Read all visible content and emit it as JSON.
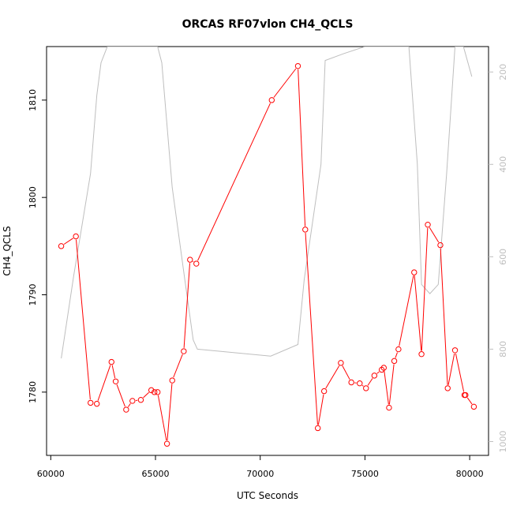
{
  "chart_data": {
    "type": "line",
    "title": "ORCAS RF07vlon CH4_QCLS",
    "xlabel": "UTC Seconds",
    "ylabel": "CH4_QCLS",
    "xlim": [
      59800,
      80900
    ],
    "ylim": [
      1773.5,
      1815.5
    ],
    "x_ticks": [
      60000,
      65000,
      70000,
      75000,
      80000
    ],
    "y_ticks": [
      1780,
      1790,
      1800,
      1810
    ],
    "y2lim": [
      1030,
      145
    ],
    "y2_ticks": [
      200,
      400,
      600,
      800,
      1000
    ],
    "grid": false,
    "series": [
      {
        "color": "#ff0000",
        "marker": "open-circle",
        "x": [
          60500,
          61200,
          61900,
          62200,
          62900,
          63100,
          63600,
          63900,
          64300,
          64800,
          64950,
          65100,
          65550,
          65800,
          66350,
          66650,
          66950,
          70550,
          71800,
          72150,
          72750,
          73050,
          73850,
          74350,
          74750,
          75050,
          75450,
          75800,
          75900,
          76150,
          76400,
          76600,
          77350,
          77700,
          78000,
          78600,
          78950,
          79300,
          79750,
          79800,
          80200
        ],
        "y": [
          1795.0,
          1796.0,
          1778.9,
          1778.8,
          1783.1,
          1781.1,
          1778.2,
          1779.1,
          1779.2,
          1780.2,
          1780.0,
          1780.0,
          1774.7,
          1781.2,
          1784.2,
          1793.6,
          1793.2,
          1810.0,
          1813.5,
          1796.7,
          1776.3,
          1780.1,
          1783.0,
          1781.0,
          1780.9,
          1780.4,
          1781.7,
          1782.3,
          1782.5,
          1778.4,
          1783.2,
          1784.4,
          1792.3,
          1783.9,
          1797.2,
          1795.1,
          1780.4,
          1784.3,
          1779.7,
          1779.7,
          1778.5
        ]
      },
      {
        "color": "#bebebe",
        "axis": "right",
        "x": [
          60500,
          61100,
          61900,
          62200,
          62400,
          62700,
          63100,
          64200,
          65100,
          65300,
          65800,
          66400,
          66800,
          67000,
          70500,
          71800,
          72100,
          72900,
          73100,
          74000,
          75000,
          76500,
          77100,
          77500,
          77700,
          78100,
          78500,
          78900,
          79300,
          79700,
          80100
        ],
        "y": [
          820,
          640,
          420,
          250,
          180,
          145,
          145,
          145,
          145,
          180,
          450,
          650,
          780,
          800,
          815,
          790,
          650,
          400,
          175,
          160,
          145,
          145,
          145,
          400,
          660,
          680,
          660,
          420,
          145,
          145,
          210
        ]
      }
    ]
  }
}
